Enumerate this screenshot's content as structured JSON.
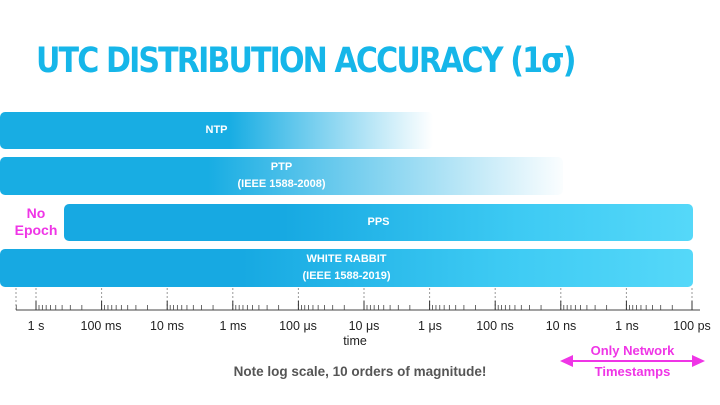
{
  "chart_data": {
    "type": "bar",
    "title": "UTC DISTRIBUTION ACCURACY (1σ)",
    "xlabel": "time",
    "xscale": "log",
    "xaxis_direction": "decreasing",
    "xlim": [
      "2 s",
      "100 ps"
    ],
    "tick_labels": [
      "1 s",
      "100 ms",
      "10 ms",
      "1 ms",
      "100 μs",
      "10 μs",
      "1 μs",
      "100 ns",
      "10 ns",
      "1 ns",
      "100 ps"
    ],
    "bars": [
      {
        "name": "NTP",
        "sublabel": "",
        "from": "2 s",
        "to": "1 μs",
        "fade": true
      },
      {
        "name": "PTP",
        "sublabel": "(IEEE 1588-2008)",
        "from": "2 s",
        "to": "10 ns",
        "fade": true
      },
      {
        "name": "PPS",
        "sublabel": "",
        "from": "0.5 s",
        "to": "100 ps",
        "fade": false
      },
      {
        "name": "WHITE RABBIT",
        "sublabel": "(IEEE 1588-2019)",
        "from": "2 s",
        "to": "100 ps",
        "fade": false
      }
    ],
    "annotations": {
      "no_epoch": [
        "No",
        "Epoch"
      ],
      "network": [
        "Only Network",
        "Timestamps"
      ],
      "note": "Note log scale, 10 orders of magnitude!"
    },
    "colors": {
      "title": "#16b6e9",
      "bar": "#18ade3",
      "annotation": "#ef35e6"
    }
  }
}
